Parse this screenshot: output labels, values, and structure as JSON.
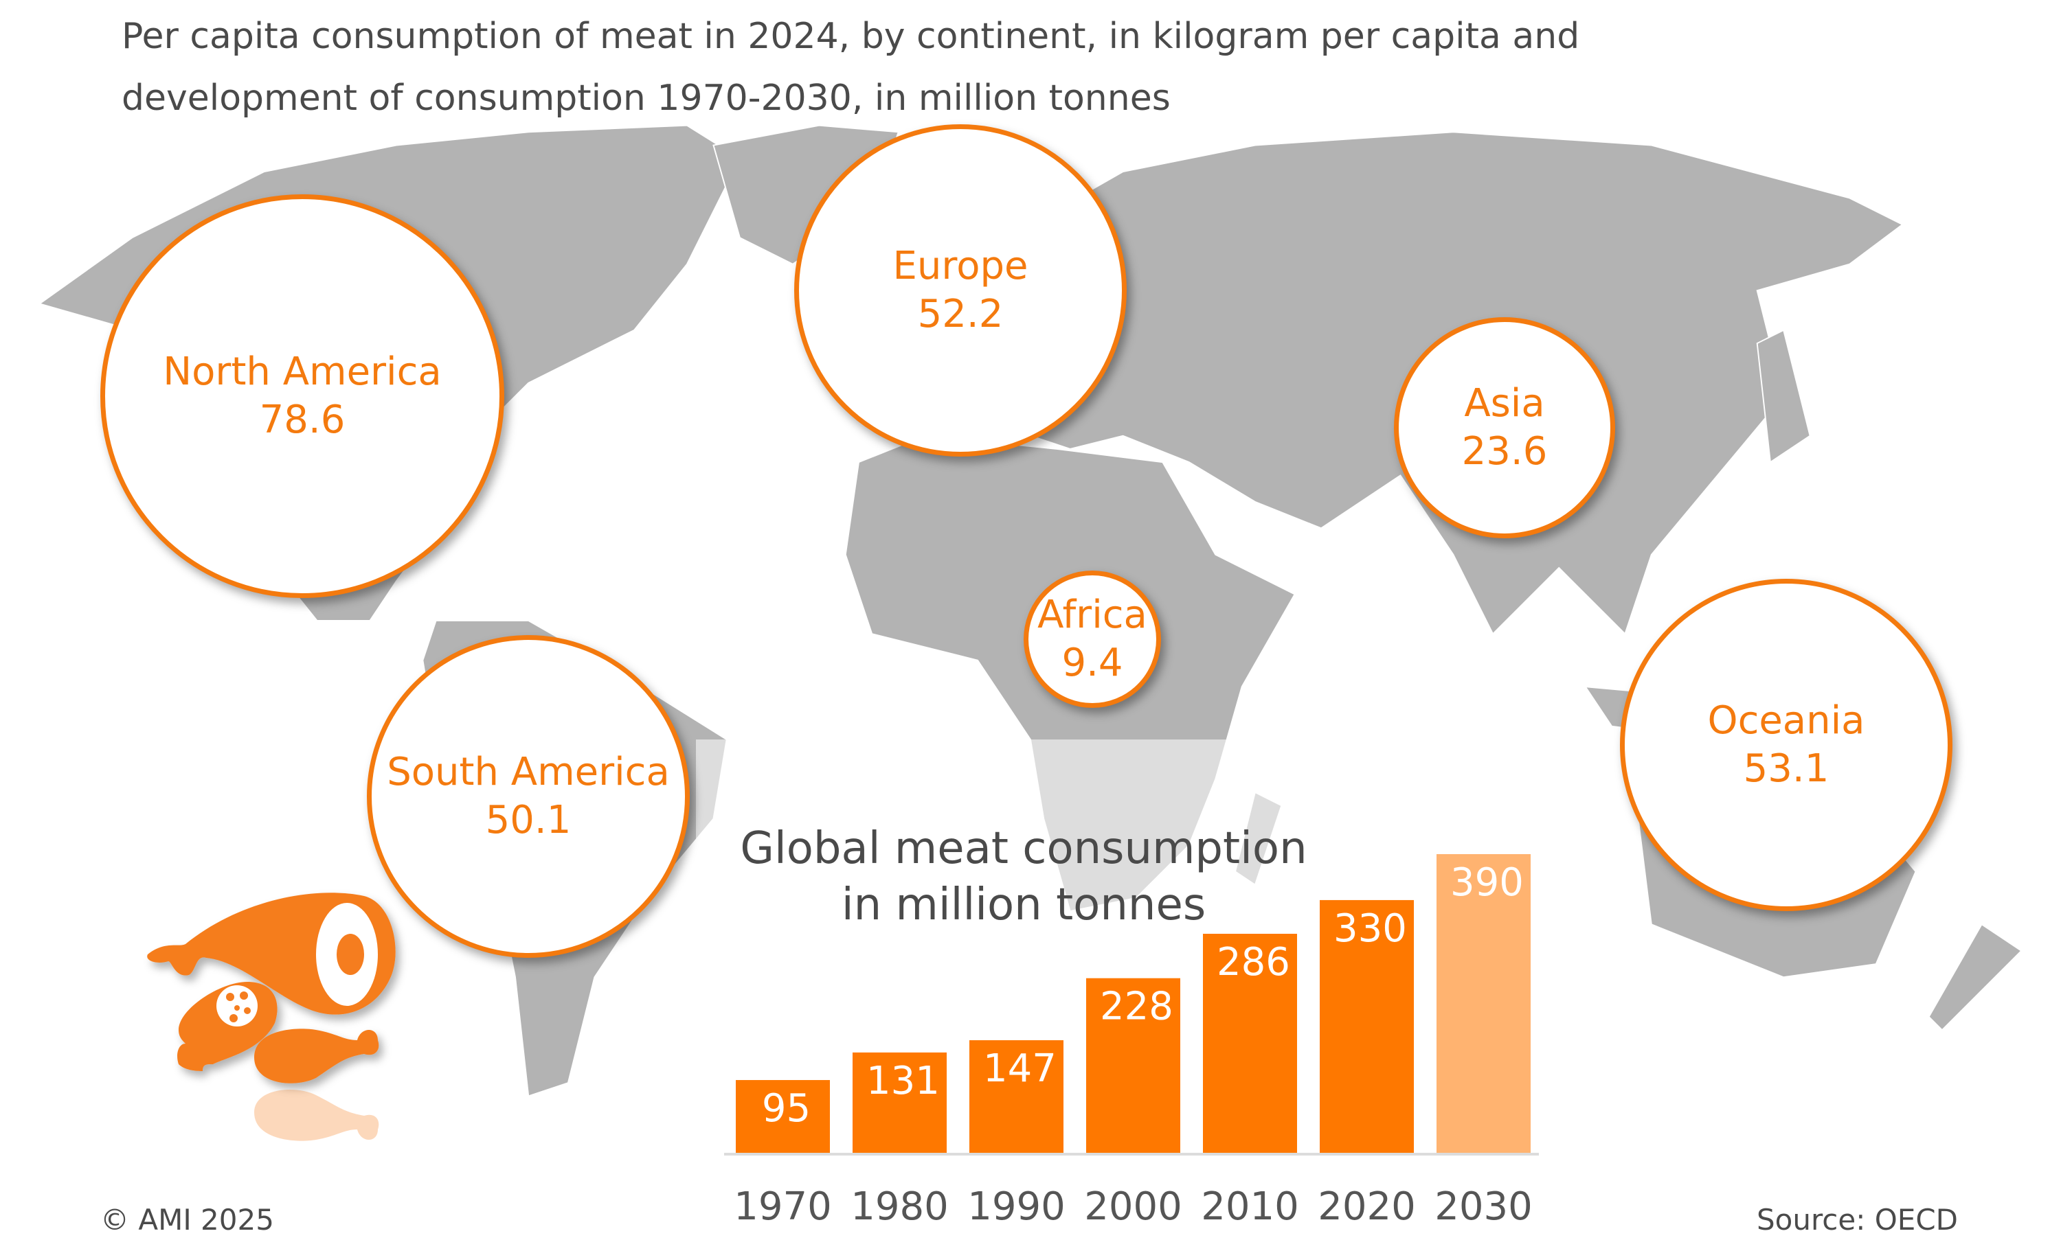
{
  "title": {
    "line1": "Per capita consumption of meat in 2024, by continent, in kilogram per capita and",
    "line2": "development of consumption 1970-2030, in million tonnes"
  },
  "continents": [
    {
      "name": "North America",
      "value": "78.6"
    },
    {
      "name": "Europe",
      "value": "52.2"
    },
    {
      "name": "Asia",
      "value": "23.6"
    },
    {
      "name": "Africa",
      "value": "9.4"
    },
    {
      "name": "South America",
      "value": "50.1"
    },
    {
      "name": "Oceania",
      "value": "53.1"
    }
  ],
  "chart_data": {
    "type": "bar",
    "title": "Global meat consumption in million tonnes",
    "title_line1": "Global meat consumption",
    "title_line2": "in million tonnes",
    "categories": [
      "1970",
      "1980",
      "1990",
      "2000",
      "2010",
      "2020",
      "2030"
    ],
    "values": [
      95,
      131,
      147,
      228,
      286,
      330,
      390
    ],
    "projected": [
      false,
      false,
      false,
      false,
      false,
      false,
      true
    ],
    "xlabel": "",
    "ylabel": "",
    "ylim": [
      0,
      390
    ],
    "colors": {
      "actual": "#fe7800",
      "projection": "#ffb370"
    }
  },
  "footer": {
    "copyright": "© AMI 2025",
    "source": "Source: OECD"
  },
  "colors": {
    "accent": "#f47a0e",
    "map": "#b3b3b3"
  }
}
